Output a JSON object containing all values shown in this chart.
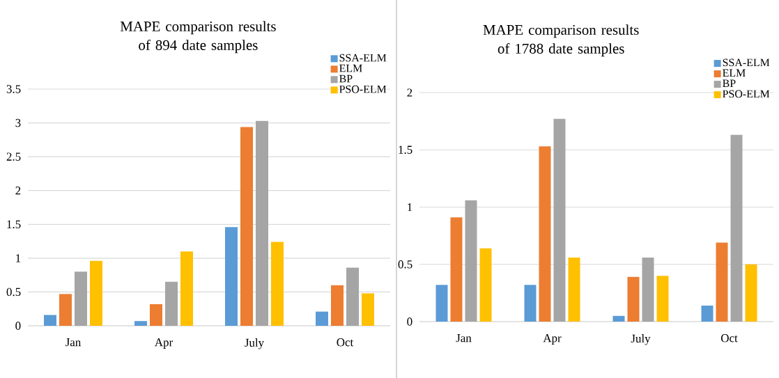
{
  "chart_data": [
    {
      "type": "bar",
      "title": "MAPE comparison results of 894 date samples",
      "categories": [
        "Jan",
        "Apr",
        "July",
        "Oct"
      ],
      "series": [
        {
          "name": "SSA-ELM",
          "color": "#5b9bd5",
          "values": [
            0.16,
            0.07,
            1.46,
            0.21
          ]
        },
        {
          "name": "ELM",
          "color": "#ed7d31",
          "values": [
            0.47,
            0.32,
            2.94,
            0.6
          ]
        },
        {
          "name": "BP",
          "color": "#a5a5a5",
          "values": [
            0.8,
            0.65,
            3.03,
            0.86
          ]
        },
        {
          "name": "PSO-ELM",
          "color": "#ffc000",
          "values": [
            0.96,
            1.1,
            1.24,
            0.48
          ]
        }
      ],
      "ylim": [
        0,
        3.5
      ],
      "yticks": [
        0,
        0.5,
        1,
        1.5,
        2,
        2.5,
        3,
        3.5
      ],
      "grid": "y",
      "legend": "top right"
    },
    {
      "type": "bar",
      "title": "MAPE  comparison results of 1788 date samples",
      "categories": [
        "Jan",
        "Apr",
        "July",
        "Oct"
      ],
      "series": [
        {
          "name": "SSA-ELM",
          "color": "#5b9bd5",
          "values": [
            0.32,
            0.32,
            0.05,
            0.14
          ]
        },
        {
          "name": "ELM",
          "color": "#ed7d31",
          "values": [
            0.91,
            1.53,
            0.39,
            0.69
          ]
        },
        {
          "name": "BP",
          "color": "#a5a5a5",
          "values": [
            1.06,
            1.77,
            0.56,
            1.63
          ]
        },
        {
          "name": "PSO-ELM",
          "color": "#ffc000",
          "values": [
            0.64,
            0.56,
            0.4,
            0.5
          ]
        }
      ],
      "ylim": [
        0,
        2
      ],
      "yticks": [
        0,
        0.5,
        1,
        1.5,
        2
      ],
      "grid": "y",
      "legend": "top right"
    }
  ]
}
